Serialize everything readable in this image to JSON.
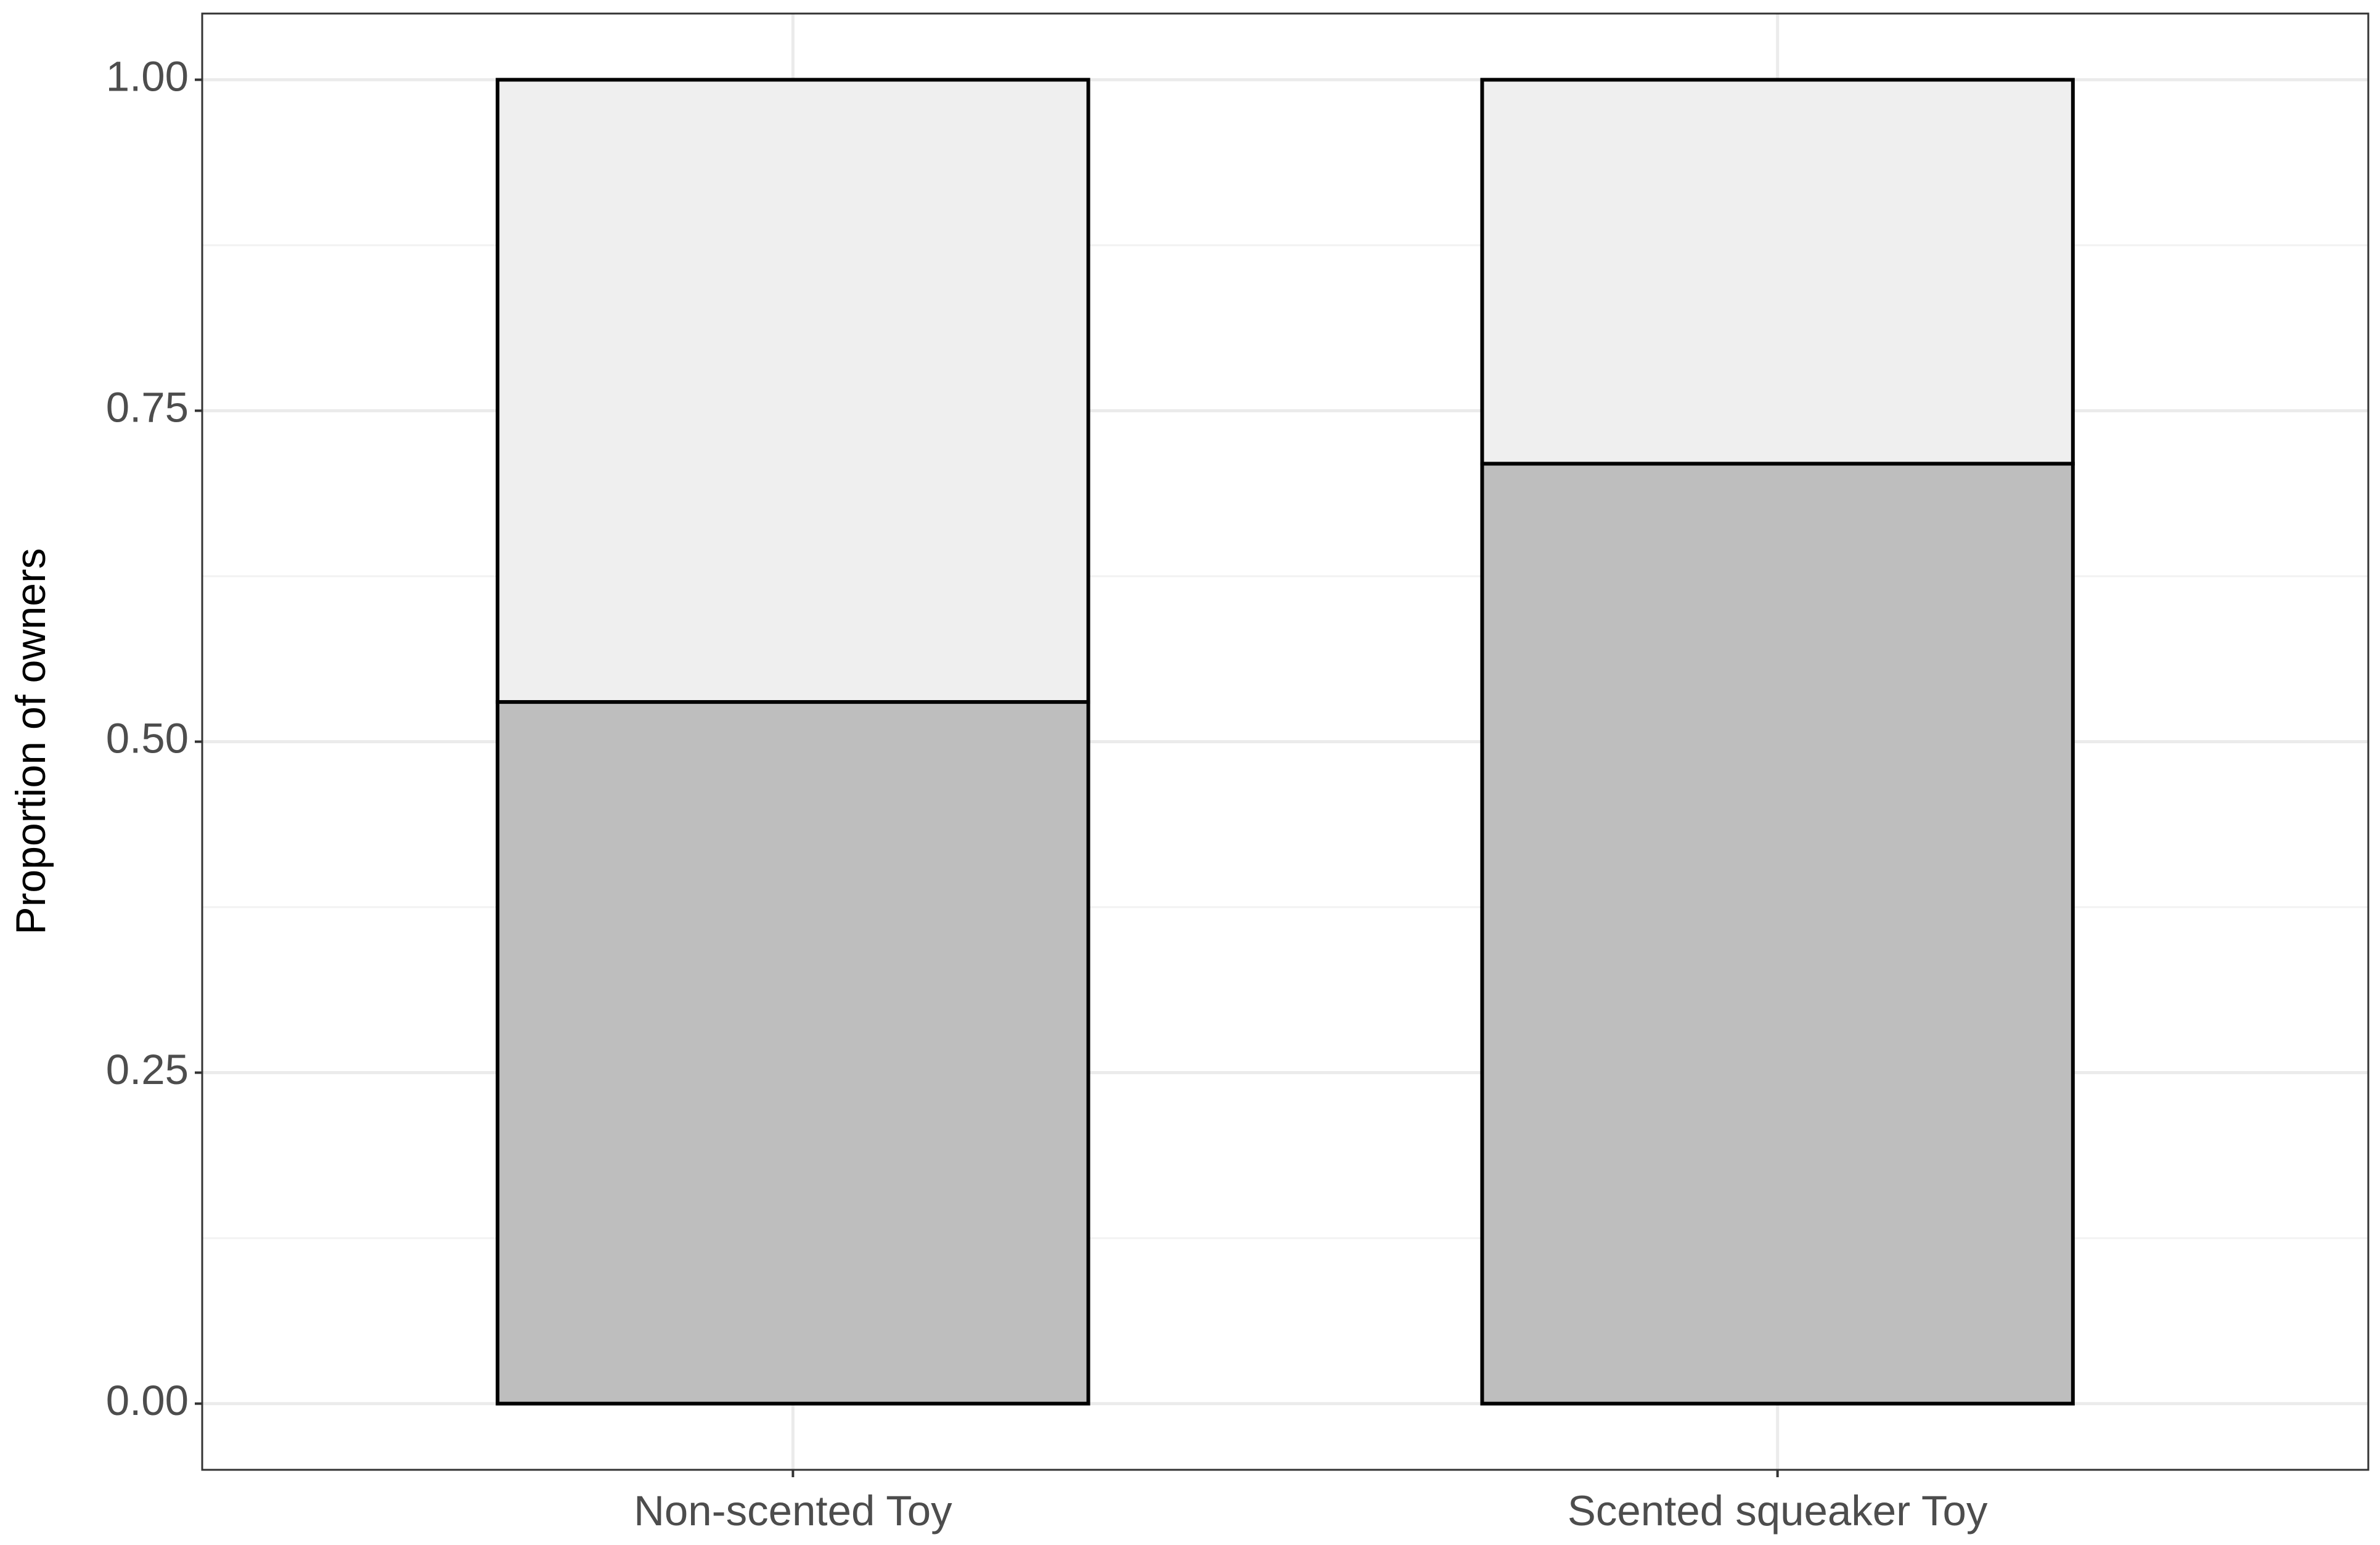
{
  "chart_data": {
    "type": "stacked_bar",
    "y_label": "Proportion of owners",
    "categories": [
      "Non-scented Toy",
      "Scented squeaker Toy"
    ],
    "series": [
      {
        "color": "#bebebe",
        "values": [
          0.53,
          0.71
        ]
      },
      {
        "color": "#efefef",
        "values": [
          0.47,
          0.29
        ]
      }
    ],
    "ylim": [
      -0.05,
      1.05
    ],
    "yticks": [
      {
        "value": 0,
        "label": "0.00"
      },
      0.25,
      {
        "value": 0.5,
        "label": "0.50"
      },
      0.75,
      {
        "value": 1,
        "label": "1.00"
      }
    ],
    "grid": true
  }
}
